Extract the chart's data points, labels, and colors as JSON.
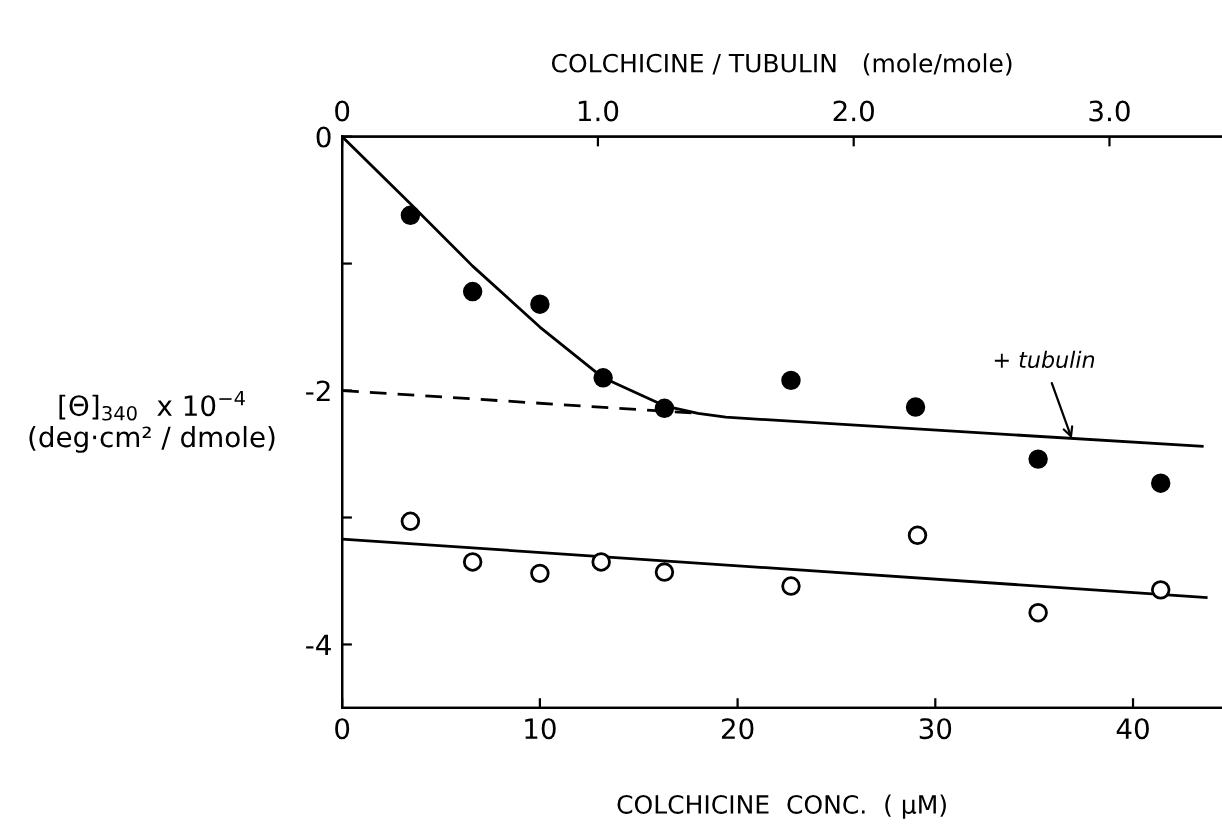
{
  "chart_data": {
    "type": "scatter",
    "xlabel": "COLCHICINE  CONC.  ( μM)",
    "ylabel": "[Θ]$_{340}$  x 10$^{−4}$\n(deg·cm² / dmole)",
    "x2label": "COLCHICINE / TUBULIN   (mole/mole)",
    "xlim": [
      0,
      44.5
    ],
    "ylim": [
      -4.5,
      0
    ],
    "xticks": [
      0,
      10,
      20,
      30,
      40
    ],
    "yticks": [
      0,
      {
        "value": -1,
        "label": null
      },
      -2,
      {
        "value": -3,
        "label": null
      },
      -4
    ],
    "x2lim": [
      0,
      3.44
    ],
    "x2ticks": [
      0,
      {
        "value": 1.0,
        "label": "1.0"
      },
      {
        "value": 2.0,
        "label": "2.0"
      },
      {
        "value": 3.0,
        "label": "3.0"
      }
    ],
    "grid": false,
    "legend": false,
    "annotations": [
      {
        "text": "+ tubulin",
        "x": 37,
        "y": -2.42
      }
    ],
    "series": [
      {
        "marker": "circle",
        "color": "#000000",
        "x": [
          3.45,
          6.6,
          10.0,
          13.2,
          16.3,
          22.7,
          29.0,
          35.2,
          41.4
        ],
        "values": [
          -0.62,
          -1.22,
          -1.32,
          -1.9,
          -2.14,
          -1.92,
          -2.13,
          -2.54,
          -2.73
        ]
      },
      {
        "marker": "circle",
        "color": "#ffffff",
        "x": [
          3.45,
          6.6,
          10.0,
          13.1,
          16.3,
          22.7,
          29.1,
          35.2,
          41.4
        ],
        "values": [
          -3.03,
          -3.35,
          -3.44,
          -3.35,
          -3.43,
          -3.54,
          -3.14,
          -3.75,
          -3.57
        ]
      },
      {
        "type": "line",
        "marker": "none",
        "line_style": "solid",
        "color": "#000000",
        "x": [
          0,
          3.4,
          6.6,
          10,
          13.2,
          16.3,
          18,
          19.4,
          43.5
        ],
        "values": [
          0,
          -0.52,
          -1.02,
          -1.5,
          -1.9,
          -2.12,
          -2.18,
          -2.21,
          -2.44
        ]
      },
      {
        "type": "line",
        "marker": "none",
        "line_style": "dashed",
        "color": "#000000",
        "x": [
          0,
          18
        ],
        "values": [
          -2.0,
          -2.18
        ]
      },
      {
        "type": "line",
        "marker": "none",
        "line_style": "solid",
        "color": "#000000",
        "x": [
          0,
          43.7
        ],
        "values": [
          -3.17,
          -3.63
        ]
      }
    ]
  }
}
